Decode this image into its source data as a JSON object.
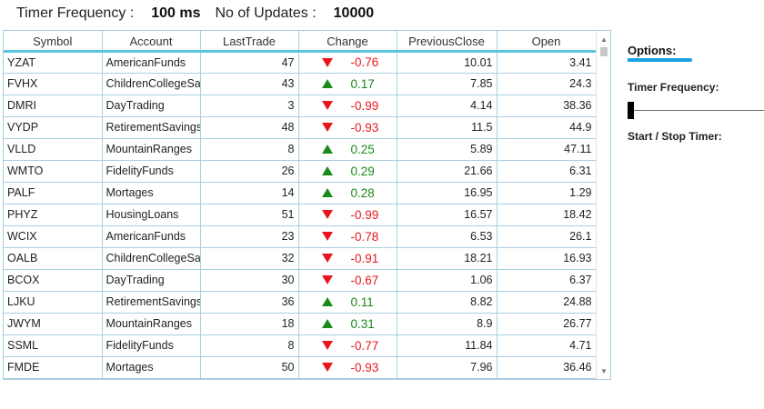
{
  "header": {
    "timer_frequency_label": "Timer Frequency :",
    "timer_frequency_value": "100 ms",
    "updates_label": "No of Updates :",
    "updates_value": "10000"
  },
  "grid": {
    "columns": [
      "Symbol",
      "Account",
      "LastTrade",
      "Change",
      "PreviousClose",
      "Open"
    ],
    "rows": [
      {
        "symbol": "YZAT",
        "account": "AmericanFunds",
        "last_trade": "47",
        "direction": "down",
        "change": "-0.76",
        "previous_close": "10.01",
        "open": "3.41"
      },
      {
        "symbol": "FVHX",
        "account": "ChildrenCollegeSavi",
        "last_trade": "43",
        "direction": "up",
        "change": "0.17",
        "previous_close": "7.85",
        "open": "24.3"
      },
      {
        "symbol": "DMRI",
        "account": "DayTrading",
        "last_trade": "3",
        "direction": "down",
        "change": "-0.99",
        "previous_close": "4.14",
        "open": "38.36"
      },
      {
        "symbol": "VYDP",
        "account": "RetirementSavings",
        "last_trade": "48",
        "direction": "down",
        "change": "-0.93",
        "previous_close": "11.5",
        "open": "44.9"
      },
      {
        "symbol": "VLLD",
        "account": "MountainRanges",
        "last_trade": "8",
        "direction": "up",
        "change": "0.25",
        "previous_close": "5.89",
        "open": "47.11"
      },
      {
        "symbol": "WMTO",
        "account": "FidelityFunds",
        "last_trade": "26",
        "direction": "up",
        "change": "0.29",
        "previous_close": "21.66",
        "open": "6.31"
      },
      {
        "symbol": "PALF",
        "account": "Mortages",
        "last_trade": "14",
        "direction": "up",
        "change": "0.28",
        "previous_close": "16.95",
        "open": "1.29"
      },
      {
        "symbol": "PHYZ",
        "account": "HousingLoans",
        "last_trade": "51",
        "direction": "down",
        "change": "-0.99",
        "previous_close": "16.57",
        "open": "18.42"
      },
      {
        "symbol": "WCIX",
        "account": "AmericanFunds",
        "last_trade": "23",
        "direction": "down",
        "change": "-0.78",
        "previous_close": "6.53",
        "open": "26.1"
      },
      {
        "symbol": "OALB",
        "account": "ChildrenCollegeSavi",
        "last_trade": "32",
        "direction": "down",
        "change": "-0.91",
        "previous_close": "18.21",
        "open": "16.93"
      },
      {
        "symbol": "BCOX",
        "account": "DayTrading",
        "last_trade": "30",
        "direction": "down",
        "change": "-0.67",
        "previous_close": "1.06",
        "open": "6.37"
      },
      {
        "symbol": "LJKU",
        "account": "RetirementSavings",
        "last_trade": "36",
        "direction": "up",
        "change": "0.11",
        "previous_close": "8.82",
        "open": "24.88"
      },
      {
        "symbol": "JWYM",
        "account": "MountainRanges",
        "last_trade": "18",
        "direction": "up",
        "change": "0.31",
        "previous_close": "8.9",
        "open": "26.77"
      },
      {
        "symbol": "SSML",
        "account": "FidelityFunds",
        "last_trade": "8",
        "direction": "down",
        "change": "-0.77",
        "previous_close": "11.84",
        "open": "4.71"
      },
      {
        "symbol": "FMDE",
        "account": "Mortages",
        "last_trade": "50",
        "direction": "down",
        "change": "-0.93",
        "previous_close": "7.96",
        "open": "36.46"
      }
    ]
  },
  "options": {
    "title": "Options:",
    "timer_frequency_label": "Timer Frequency:",
    "timer_frequency_slider_fraction": 0.0,
    "start_stop_label": "Start / Stop Timer:"
  },
  "colors": {
    "accent": "#1ba1e2",
    "header_underline": "#5bc4dc",
    "grid_lines": "#a8cfe0",
    "negative": "#e8161c",
    "positive": "#1a8a1a"
  },
  "icons": {
    "down": "triangle-down-icon",
    "up": "triangle-up-icon"
  }
}
